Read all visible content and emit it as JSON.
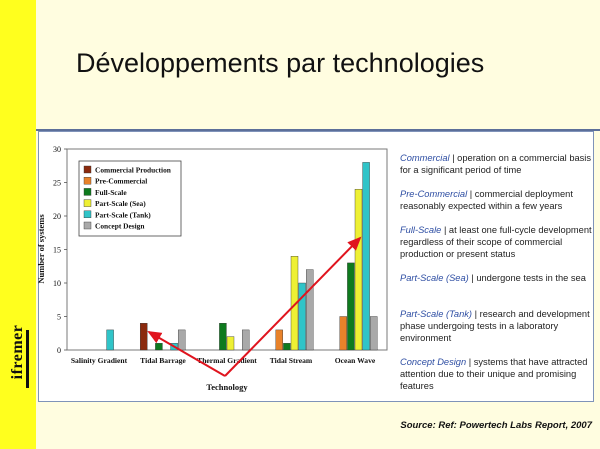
{
  "slide": {
    "title": "Développements par technologies",
    "logo_text": "ifremer",
    "source": "Source: Ref: Powertech Labs  Report, 2007"
  },
  "definitions": [
    {
      "term": "Commercial",
      "text": "| operation on a commercial basis for a significant period of time"
    },
    {
      "term": "Pre-Commercial",
      "text": "| commercial deployment reasonably expected within a few years"
    },
    {
      "term": "Full-Scale",
      "text": "| at least one full-cycle development regardless of their scope of commercial production or present status"
    },
    {
      "term": "Part-Scale (Sea)",
      "text": "| undergone tests in the sea"
    },
    {
      "term": "Part-Scale (Tank)",
      "text": "| research and development phase undergoing tests in a laboratory environment"
    },
    {
      "term": "Concept Design",
      "text": "| systems that have attracted attention due to their unique and promising features"
    }
  ],
  "chart_data": {
    "type": "bar",
    "xlabel": "Technology",
    "ylabel": "Number of systems",
    "ylim": [
      0,
      30
    ],
    "yticks": [
      0,
      5,
      10,
      15,
      20,
      25,
      30
    ],
    "categories": [
      "Salinity Gradient",
      "Tidal Barrage",
      "Thermal  Gradient",
      "Tidal Stream",
      "Ocean Wave"
    ],
    "series": [
      {
        "name": "Commercial Production",
        "color": "#8b2a0e",
        "values": [
          0,
          4,
          0,
          0,
          0
        ]
      },
      {
        "name": "Pre-Commercial",
        "color": "#e8822a",
        "values": [
          0,
          0,
          0,
          3,
          5
        ]
      },
      {
        "name": "Full-Scale",
        "color": "#0e7a1e",
        "values": [
          0,
          1,
          4,
          1,
          13
        ]
      },
      {
        "name": "Part-Scale (Sea)",
        "color": "#eef034",
        "values": [
          0,
          0,
          2,
          14,
          24
        ]
      },
      {
        "name": "Part-Scale (Tank)",
        "color": "#30c4c8",
        "values": [
          3,
          1,
          0,
          10,
          28
        ]
      },
      {
        "name": "Concept Design",
        "color": "#a9a9a9",
        "values": [
          0,
          3,
          3,
          12,
          5
        ]
      }
    ],
    "legend_position": "top-left",
    "annotation": "red arrows from Technology label toward Tidal Barrage and Ocean Wave"
  }
}
